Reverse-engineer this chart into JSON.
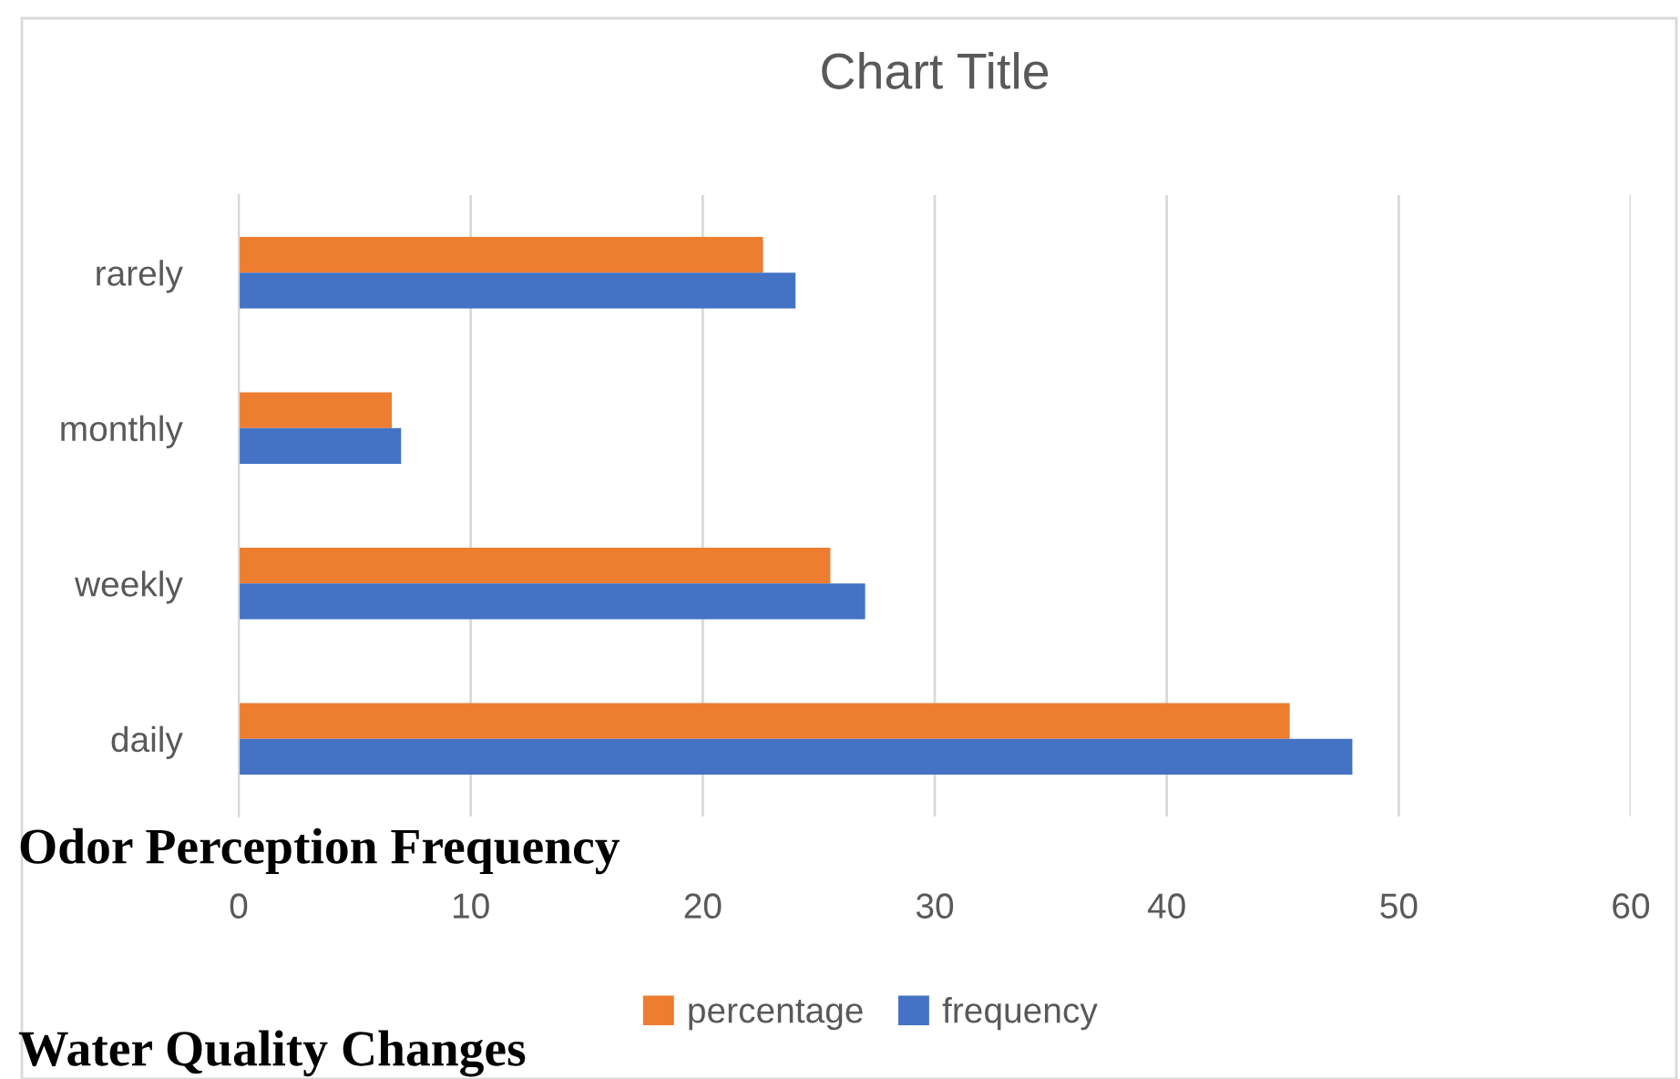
{
  "chart_data": {
    "type": "bar",
    "orientation": "horizontal",
    "title": "Chart Title",
    "categories": [
      "rarely",
      "monthly",
      "weekly",
      "daily"
    ],
    "series": [
      {
        "name": "percentage",
        "color": "#ed7d31",
        "values": [
          22.6,
          6.6,
          25.5,
          45.3
        ]
      },
      {
        "name": "frequency",
        "color": "#4472c4",
        "values": [
          24,
          7,
          27,
          48
        ]
      }
    ],
    "xlim": [
      0,
      60
    ],
    "xticks": [
      0,
      10,
      20,
      30,
      40,
      50,
      60
    ],
    "grid": "x",
    "legend": "bottom",
    "annotations": [
      "Odor Perception Frequency",
      "Water Quality Changes"
    ]
  }
}
